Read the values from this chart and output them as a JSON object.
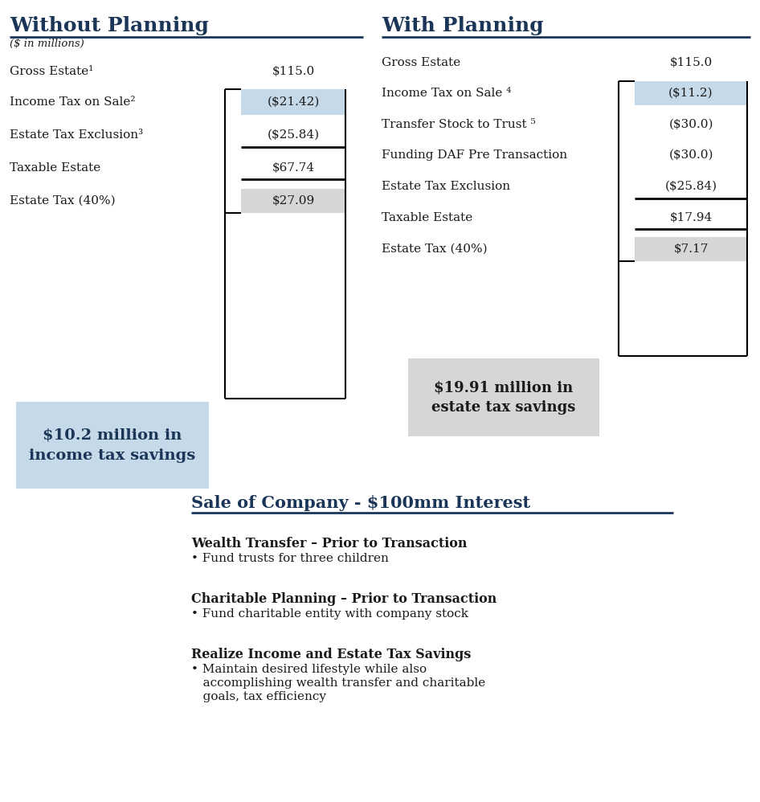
{
  "title_left": "Without Planning",
  "title_right": "With Planning",
  "subtitle": "($ in millions)",
  "title_color": "#1a3558",
  "line_color": "#1a3558",
  "text_color": "#1a1a1a",
  "bg_color": "#ffffff",
  "blue_box_color": "#c5d9e8",
  "gray_box_color": "#d6d6d6",
  "left_rows": [
    {
      "label": "Gross Estate¹",
      "value": "$115.0",
      "box": null,
      "underline": false
    },
    {
      "label": "Income Tax on Sale²",
      "value": "($21.42)",
      "box": "blue",
      "underline": false
    },
    {
      "label": "Estate Tax Exclusion³",
      "value": "($25.84)",
      "box": null,
      "underline": true
    },
    {
      "label": "Taxable Estate",
      "value": "$67.74",
      "box": null,
      "underline": true
    },
    {
      "label": "Estate Tax (40%)",
      "value": "$27.09",
      "box": "gray",
      "underline": false
    }
  ],
  "right_rows": [
    {
      "label": "Gross Estate",
      "value": "$115.0",
      "box": null,
      "underline": false
    },
    {
      "label": "Income Tax on Sale ⁴",
      "value": "($11.2)",
      "box": "blue",
      "underline": false
    },
    {
      "label": "Transfer Stock to Trust ⁵",
      "value": "($30.0)",
      "box": null,
      "underline": false
    },
    {
      "label": "Funding DAF Pre Transaction",
      "value": "($30.0)",
      "box": null,
      "underline": false
    },
    {
      "label": "Estate Tax Exclusion",
      "value": "($25.84)",
      "box": null,
      "underline": true
    },
    {
      "label": "Taxable Estate",
      "value": "$17.94",
      "box": null,
      "underline": true
    },
    {
      "label": "Estate Tax (40%)",
      "value": "$7.17",
      "box": "gray",
      "underline": false
    }
  ],
  "left_savings_text": "$10.2 million in\nincome tax savings",
  "right_savings_text": "$19.91 million in\nestate tax savings",
  "section_title": "Sale of Company - $100mm Interest",
  "bullets": [
    {
      "heading": "Wealth Transfer – Prior to Transaction",
      "text": "Fund trusts for three children"
    },
    {
      "heading": "Charitable Planning – Prior to Transaction",
      "text": "Fund charitable entity with company stock"
    },
    {
      "heading": "Realize Income and Estate Tax Savings",
      "text": "Maintain desired lifestyle while also\naccomplishing wealth transfer and charitable\ngoals, tax efficiency"
    }
  ],
  "fig_w": 9.46,
  "fig_h": 9.98,
  "dpi": 100
}
